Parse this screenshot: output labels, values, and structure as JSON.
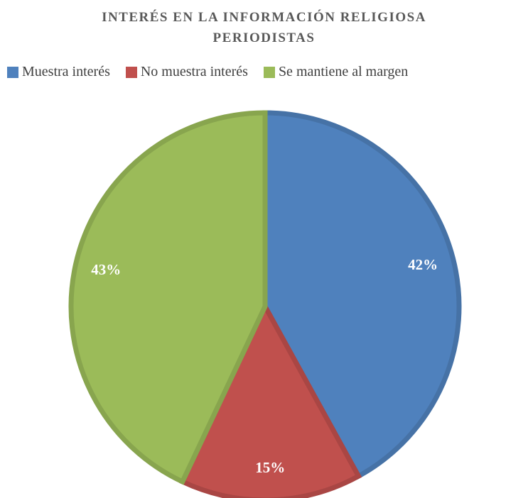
{
  "chart_data": {
    "type": "pie",
    "title": "INTERÉS EN LA INFORMACIÓN RELIGIOSA PERIODISTAS",
    "categories": [
      "Muestra interés",
      "No muestra interés",
      "Se mantiene al margen"
    ],
    "values": [
      42,
      15,
      43
    ],
    "value_labels": [
      "42%",
      "15%",
      "43%"
    ],
    "colors": [
      "#4f81bd",
      "#c0504d",
      "#9bbb59"
    ],
    "legend": "top"
  }
}
